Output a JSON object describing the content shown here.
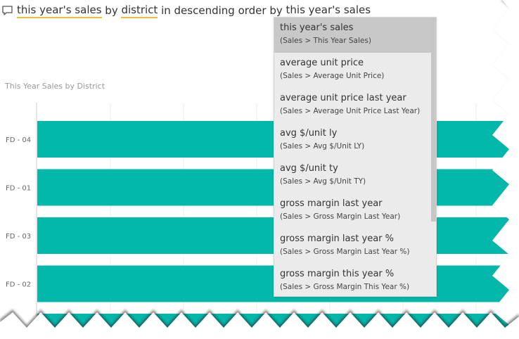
{
  "query": {
    "tokens": [
      {
        "text": "this year's sales",
        "highlighted": true
      },
      {
        "text": " by ",
        "highlighted": false
      },
      {
        "text": "district",
        "highlighted": true
      },
      {
        "text": " in descending order by ",
        "highlighted": false
      },
      {
        "text": "this year's sales",
        "highlighted": true
      }
    ],
    "icon": "speech-bubble-icon"
  },
  "suggestions": [
    {
      "term": "this year's sales",
      "path": "(Sales > This Year Sales)",
      "selected": true
    },
    {
      "term": "average unit price",
      "path": "(Sales > Average Unit Price)",
      "selected": false
    },
    {
      "term": "average unit price last year",
      "path": "(Sales > Average Unit Price Last Year)",
      "selected": false
    },
    {
      "term": "avg $/unit ly",
      "path": "(Sales > Avg $/Unit LY)",
      "selected": false
    },
    {
      "term": "avg $/unit ty",
      "path": "(Sales > Avg $/Unit TY)",
      "selected": false
    },
    {
      "term": "gross margin last year",
      "path": "(Sales > Gross Margin Last Year)",
      "selected": false
    },
    {
      "term": "gross margin last year %",
      "path": "(Sales > Gross Margin Last Year %)",
      "selected": false
    },
    {
      "term": "gross margin this year %",
      "path": "(Sales > Gross Margin This Year %)",
      "selected": false
    }
  ],
  "colors": {
    "bar": "#01b8aa",
    "highlight_underline": "#e8c03a",
    "gridline": "#eeeeee"
  },
  "chart_data": {
    "type": "bar",
    "orientation": "horizontal",
    "title": "This Year Sales by District",
    "categories": [
      "FD - 04",
      "FD - 01",
      "FD - 03",
      "FD - 02"
    ],
    "partially_visible_category": true,
    "sorted": "descending",
    "grid": true
  }
}
